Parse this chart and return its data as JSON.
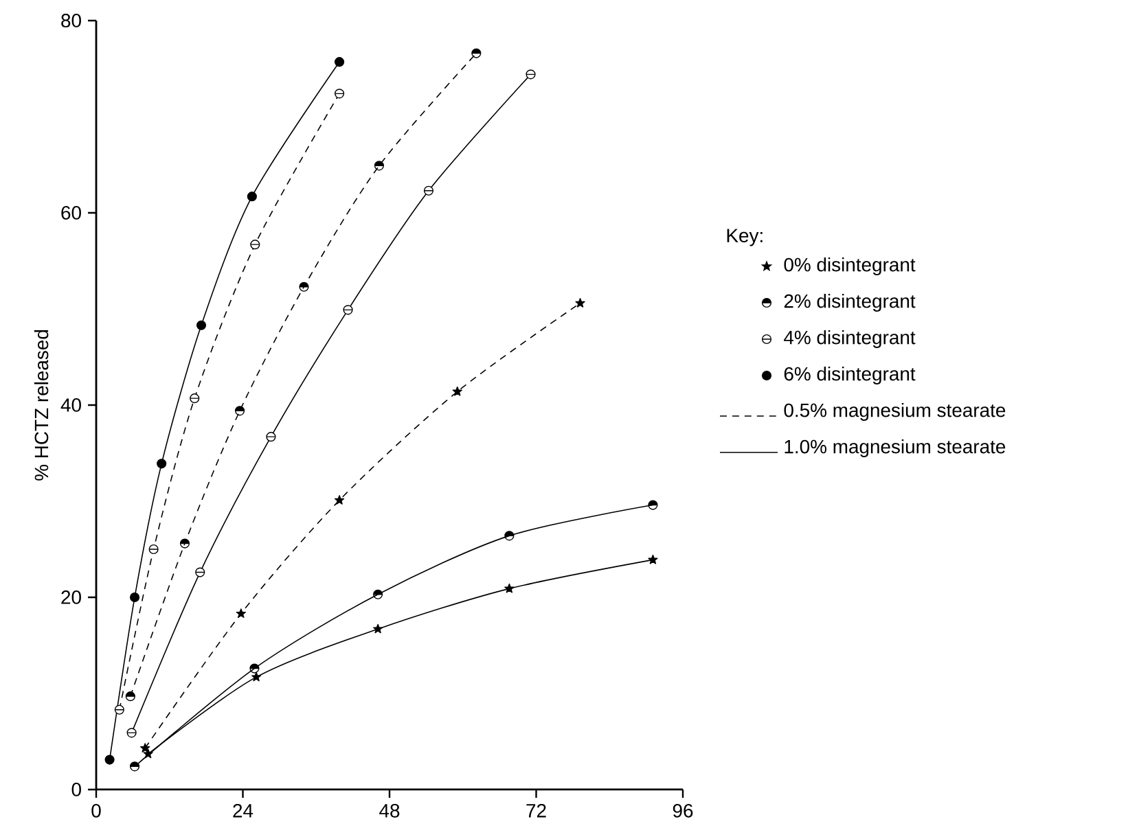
{
  "chart_data": {
    "type": "line",
    "ylabel": "% HCTZ released",
    "xlim": [
      0,
      96
    ],
    "ylim": [
      0,
      80
    ],
    "xticks": [
      0,
      24,
      48,
      72,
      96
    ],
    "yticks": [
      0,
      20,
      40,
      60,
      80
    ],
    "grid": false,
    "legend_title": "Key:",
    "annotations": [
      "0% disintegrant",
      "2% disintegrant",
      "4% disintegrant",
      "6% disintegrant",
      "0.5% magnesium stearate",
      "1.0% magnesium stearate"
    ],
    "series": [
      {
        "color": "#000000",
        "marker": "star",
        "line_style": "dashed",
        "x": [
          8,
          23.7,
          39.8,
          59.1,
          79.2
        ],
        "values": [
          4.3,
          18.3,
          30.1,
          41.4,
          50.6
        ]
      },
      {
        "color": "#000000",
        "marker": "star",
        "line_style": "solid",
        "x": [
          8.5,
          26.2,
          46.1,
          67.6,
          91.1
        ],
        "values": [
          3.7,
          11.7,
          16.7,
          20.9,
          23.9
        ]
      },
      {
        "color": "#000000",
        "marker": "half-circle",
        "line_style": "dashed",
        "x": [
          5.6,
          14.5,
          23.5,
          34,
          46.3,
          62.2
        ],
        "values": [
          9.7,
          25.6,
          39.4,
          52.3,
          64.9,
          76.6
        ]
      },
      {
        "color": "#000000",
        "marker": "half-circle",
        "line_style": "solid",
        "x": [
          6.3,
          25.9,
          46.1,
          67.6,
          91.1
        ],
        "values": [
          2.4,
          12.6,
          20.3,
          26.4,
          29.6
        ]
      },
      {
        "color": "#000000",
        "marker": "barred-circle",
        "line_style": "dashed",
        "x": [
          3.8,
          9.4,
          16.1,
          26,
          39.8
        ],
        "values": [
          8.3,
          25,
          40.7,
          56.7,
          72.4
        ]
      },
      {
        "color": "#000000",
        "marker": "barred-circle",
        "line_style": "solid",
        "x": [
          5.8,
          17,
          28.6,
          41.2,
          54.4,
          71.1
        ],
        "values": [
          5.9,
          22.6,
          36.7,
          49.9,
          62.3,
          74.4
        ]
      },
      {
        "color": "#000000",
        "marker": "circle",
        "line_style": "solid",
        "x": [
          2.2,
          6.3,
          10.7,
          17.2,
          25.5,
          39.8
        ],
        "values": [
          3.1,
          20,
          33.9,
          48.3,
          61.7,
          75.7
        ]
      }
    ]
  }
}
